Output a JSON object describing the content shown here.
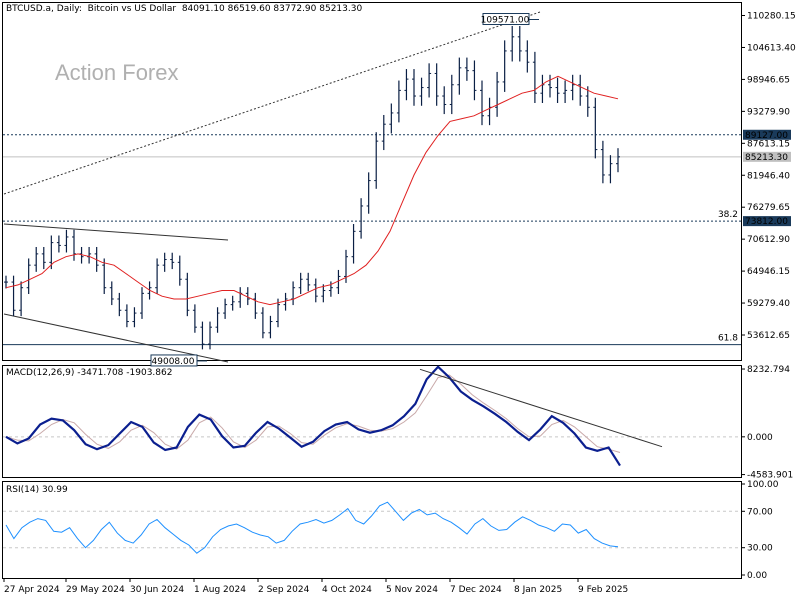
{
  "header": {
    "symbol": "BTCUSD.a",
    "timeframe": "Daily:",
    "description": "Bitcoin vs US Dollar",
    "ohlc": "84091.10 86519.60 83772.90 85213.30"
  },
  "watermark": "Action Forex",
  "colors": {
    "price": "#0a1f44",
    "ma": "#e02020",
    "macd": "#0b1f8f",
    "signal": "#c9a9a9",
    "rsi": "#1e90ff",
    "grid": "#7a7a7a",
    "dotted": "#c8c8c8"
  },
  "chart_data": [
    {
      "type": "line",
      "name": "main-price-panel",
      "header": "BTCUSD.a, Daily:  Bitcoin vs US Dollar  84091.10 86519.60 83772.90 85213.30",
      "ylim": [
        49000,
        112500
      ],
      "y_ticks": [
        "110280.15",
        "104613.40",
        "98946.65",
        "93279.90",
        "87613.15",
        "81946.40",
        "76279.65",
        "70612.90",
        "64946.15",
        "59279.40",
        "53612.65"
      ],
      "x_ticks": [
        "27 Apr 2024",
        "29 May 2024",
        "30 Jun 2024",
        "1 Aug 2024",
        "2 Sep 2024",
        "4 Oct 2024",
        "5 Nov 2024",
        "7 Dec 2024",
        "8 Jan 2025",
        "9 Feb 2025"
      ],
      "levels": [
        {
          "label": "89127.00",
          "value": 89127,
          "style": "dashed"
        },
        {
          "label": "73812.00",
          "value": 73812,
          "style": "dashed",
          "fib": "38.2"
        },
        {
          "label": "85213.30",
          "value": 85213,
          "style": "current"
        },
        {
          "label": "61.8",
          "value": 51900,
          "style": "fib"
        }
      ],
      "annotations": [
        {
          "label": "109571.00",
          "x": "20 Jan 2025",
          "value": 109571
        },
        {
          "label": "49008.00",
          "x": "5 Aug 2024",
          "value": 49008
        }
      ],
      "series": [
        {
          "name": "BTCUSD close",
          "values": [
            63000,
            58000,
            62000,
            66000,
            68000,
            66500,
            70000,
            69500,
            71000,
            68000,
            67500,
            68000,
            66000,
            62000,
            60000,
            58000,
            56000,
            57500,
            61000,
            62000,
            66000,
            67000,
            66500,
            63500,
            58000,
            55000,
            52000,
            55000,
            57500,
            59000,
            59500,
            61000,
            60000,
            57500,
            54000,
            56000,
            59000,
            60000,
            62000,
            63500,
            62500,
            60500,
            61500,
            62000,
            64000,
            67500,
            72000,
            76500,
            81000,
            88000,
            91000,
            93000,
            97000,
            99000,
            96000,
            97500,
            100000,
            96000,
            94500,
            98000,
            101000,
            100500,
            97000,
            92500,
            94000,
            98500,
            104000,
            106500,
            104000,
            102000,
            96500,
            98000,
            97500,
            96500,
            97000,
            98000,
            96000,
            94000,
            86500,
            82000,
            84000,
            85213
          ]
        },
        {
          "name": "MA",
          "values": [
            62000,
            62500,
            63500,
            64500,
            66500,
            67500,
            68000,
            67500,
            66500,
            66000,
            64500,
            63000,
            61500,
            60500,
            60000,
            60000,
            60500,
            61000,
            61500,
            61500,
            60500,
            59500,
            59000,
            59500,
            60000,
            61000,
            62000,
            62500,
            63500,
            64500,
            66000,
            68500,
            72000,
            77000,
            82000,
            86000,
            89000,
            91500,
            92000,
            92500,
            93500,
            94500,
            95500,
            96500,
            97000,
            98500,
            99500,
            98500,
            97500,
            96500,
            96000,
            95500
          ]
        }
      ]
    },
    {
      "type": "line",
      "name": "macd-panel",
      "header": "MACD(12,26,9) -3471.708 -1903.862",
      "ylim": [
        -5000,
        8600
      ],
      "y_ticks": [
        "8232.794",
        "0.000",
        "-4583.901"
      ],
      "series": [
        {
          "name": "MACD",
          "values": [
            0,
            -800,
            -200,
            1500,
            2200,
            2000,
            800,
            -900,
            -1500,
            -1000,
            400,
            1800,
            1200,
            -700,
            -1600,
            -1300,
            1200,
            2700,
            2100,
            100,
            -1300,
            -1100,
            500,
            1800,
            1000,
            -100,
            -1200,
            -600,
            700,
            1500,
            1800,
            900,
            500,
            800,
            1400,
            2500,
            4000,
            7000,
            8500,
            7200,
            5500,
            4500,
            3700,
            2800,
            1800,
            600,
            -400,
            900,
            2500,
            1700,
            400,
            -1300,
            -1700,
            -1300,
            -3500
          ]
        },
        {
          "name": "Signal",
          "values": [
            0,
            -400,
            -500,
            400,
            1500,
            2100,
            1700,
            300,
            -900,
            -1400,
            -600,
            800,
            1400,
            500,
            -900,
            -1500,
            -400,
            1700,
            2400,
            1100,
            -600,
            -1300,
            -400,
            1200,
            1300,
            400,
            -700,
            -900,
            200,
            1100,
            1600,
            1300,
            800,
            700,
            1000,
            1800,
            2900,
            5000,
            7200,
            7500,
            6400,
            5100,
            4100,
            3200,
            2200,
            1000,
            0,
            100,
            1500,
            2000,
            1200,
            0,
            -1200,
            -1500,
            -1900
          ]
        }
      ]
    },
    {
      "type": "line",
      "name": "rsi-panel",
      "header": "RSI(14) 30.99",
      "ylim": [
        0,
        100
      ],
      "y_ticks": [
        "100.00",
        "70.00",
        "30.00",
        "0.00"
      ],
      "series": [
        {
          "name": "RSI",
          "values": [
            55,
            40,
            52,
            58,
            62,
            60,
            48,
            47,
            52,
            40,
            30,
            38,
            50,
            58,
            46,
            38,
            35,
            44,
            56,
            61,
            52,
            45,
            38,
            33,
            24,
            30,
            42,
            50,
            54,
            56,
            52,
            47,
            44,
            42,
            35,
            38,
            48,
            56,
            58,
            61,
            57,
            60,
            66,
            73,
            60,
            56,
            65,
            76,
            80,
            70,
            60,
            68,
            72,
            66,
            68,
            62,
            58,
            52,
            45,
            56,
            62,
            54,
            49,
            50,
            58,
            64,
            60,
            55,
            52,
            48,
            56,
            55,
            46,
            50,
            40,
            35,
            32,
            31
          ]
        }
      ]
    }
  ]
}
